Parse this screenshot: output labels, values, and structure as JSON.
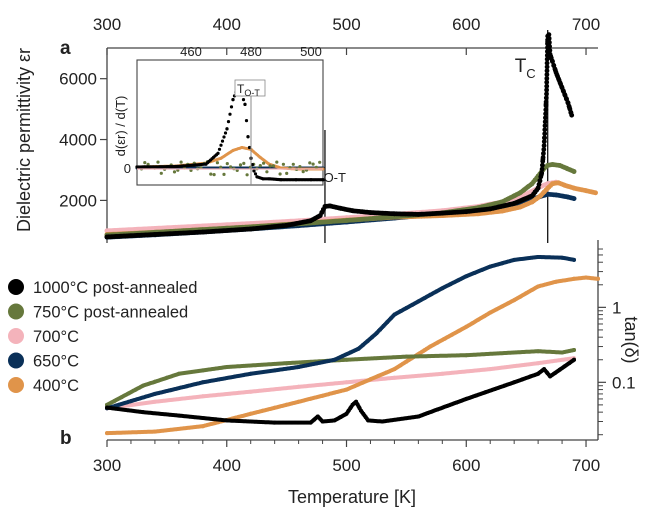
{
  "chart_data": [
    {
      "panel": "a",
      "type": "scatter",
      "title": "",
      "xlabel": "",
      "ylabel": "Dielectric permittivity εr",
      "xlim": [
        300,
        710
      ],
      "ylim": [
        600,
        7600
      ],
      "x_ticks": [
        "300",
        "400",
        "500",
        "600",
        "700"
      ],
      "y_ticks": [
        "2000",
        "4000",
        "6000"
      ],
      "x_tick_values": [
        300,
        400,
        500,
        600,
        700
      ],
      "y_tick_values": [
        2000,
        4000,
        6000
      ],
      "annotations": {
        "tc": {
          "text": "T",
          "sub": "C",
          "x": 668
        },
        "tot": {
          "text": "T",
          "sub": "O-T",
          "x": 482
        }
      },
      "series": [
        {
          "name": "1000°C post-annealed",
          "color": "#000000",
          "shape": "dots",
          "x": [
            300,
            340,
            380,
            420,
            450,
            470,
            478,
            482,
            486,
            495,
            505,
            520,
            540,
            560,
            580,
            600,
            620,
            640,
            655,
            660,
            663,
            665,
            667,
            668,
            669,
            670,
            675,
            680,
            685,
            688
          ],
          "y": [
            800,
            880,
            960,
            1060,
            1180,
            1330,
            1500,
            1800,
            1820,
            1740,
            1660,
            1600,
            1560,
            1540,
            1580,
            1630,
            1720,
            1900,
            2150,
            2400,
            2900,
            3800,
            5500,
            7400,
            7450,
            6800,
            6200,
            5700,
            5200,
            4800
          ]
        },
        {
          "name": "750°C post-annealed",
          "color": "#66783c",
          "shape": "dots",
          "x": [
            300,
            340,
            380,
            420,
            460,
            500,
            540,
            580,
            610,
            630,
            645,
            655,
            660,
            665,
            668,
            672,
            678,
            684,
            690
          ],
          "y": [
            860,
            950,
            1040,
            1130,
            1230,
            1340,
            1460,
            1590,
            1760,
            1950,
            2250,
            2550,
            2800,
            3050,
            3150,
            3180,
            3150,
            3050,
            2950
          ]
        },
        {
          "name": "700°C",
          "color": "#f4b3bb",
          "shape": "dots",
          "x": [
            300,
            340,
            380,
            420,
            460,
            500,
            540,
            580,
            610,
            630,
            645,
            655,
            662,
            668,
            675
          ],
          "y": [
            1000,
            1080,
            1160,
            1240,
            1330,
            1430,
            1540,
            1660,
            1800,
            1950,
            2120,
            2300,
            2450,
            2550,
            2600
          ]
        },
        {
          "name": "650°C",
          "color": "#0a3058",
          "shape": "dots",
          "x": [
            300,
            340,
            380,
            420,
            460,
            500,
            540,
            580,
            610,
            630,
            645,
            655,
            662,
            668,
            675,
            685,
            690
          ],
          "y": [
            790,
            870,
            960,
            1060,
            1170,
            1290,
            1420,
            1560,
            1690,
            1800,
            1910,
            2030,
            2130,
            2200,
            2180,
            2110,
            2060
          ]
        },
        {
          "name": "400°C",
          "color": "#e0944a",
          "shape": "dots",
          "x": [
            300,
            340,
            380,
            420,
            460,
            500,
            540,
            580,
            610,
            630,
            645,
            655,
            662,
            668,
            672,
            677,
            682,
            690,
            700,
            708
          ],
          "y": [
            880,
            950,
            1040,
            1130,
            1240,
            1350,
            1450,
            1500,
            1560,
            1650,
            1780,
            1950,
            2150,
            2400,
            2550,
            2580,
            2500,
            2400,
            2320,
            2250
          ]
        }
      ]
    },
    {
      "panel": "a-inset",
      "type": "scatter",
      "ylabel": "d(εr) / d(T)",
      "xlim": [
        442,
        504
      ],
      "x_ticks": [
        "460",
        "480",
        "500"
      ],
      "x_tick_values": [
        460,
        480,
        500
      ],
      "y_ticks": [
        "0"
      ],
      "annotation": {
        "text": "T",
        "sub": "O-T",
        "x": 480
      },
      "series": [
        {
          "name": "1000°C post-annealed",
          "color": "#000000",
          "x": [
            442,
            455,
            465,
            469,
            472,
            474,
            476,
            478,
            479,
            480,
            481,
            482,
            484,
            486,
            490,
            495,
            500,
            504
          ],
          "y": [
            0.1,
            0.15,
            0.4,
            1.5,
            4.0,
            7.0,
            8.5,
            6.5,
            3.2,
            1.0,
            -0.3,
            -0.9,
            -1.1,
            -1.1,
            -1.2,
            -1.2,
            -1.2,
            -1.2
          ]
        },
        {
          "name": "750°C post-annealed",
          "color": "#66783c",
          "noisy": true,
          "x": [
            442,
            504
          ],
          "y": [
            0,
            0
          ]
        },
        {
          "name": "650°C",
          "color": "#0a3058",
          "x": [
            442,
            504
          ],
          "y": [
            0,
            0
          ]
        },
        {
          "name": "400°C",
          "color": "#e0944a",
          "x": [
            442,
            455,
            465,
            470,
            474,
            477,
            480,
            483,
            486,
            490,
            495,
            504
          ],
          "y": [
            0.1,
            0.2,
            0.5,
            1.0,
            1.8,
            2.1,
            1.9,
            1.1,
            0.4,
            0.0,
            -0.1,
            -0.1
          ]
        }
      ]
    },
    {
      "panel": "b",
      "type": "scatter",
      "xlabel": "Temperature [K]",
      "ylabel": "tan(δ)",
      "yscale": "log",
      "xlim": [
        300,
        710
      ],
      "ylim": [
        0.017,
        7
      ],
      "x_ticks": [
        "300",
        "400",
        "500",
        "600",
        "700"
      ],
      "x_tick_values": [
        300,
        400,
        500,
        600,
        700
      ],
      "y_ticks": [
        "0.1",
        "1"
      ],
      "y_tick_values": [
        0.1,
        1
      ],
      "legend_position": "left",
      "series": [
        {
          "name": "1000°C post-annealed",
          "color": "#000000",
          "x": [
            300,
            330,
            360,
            400,
            440,
            470,
            476,
            480,
            490,
            500,
            505,
            508,
            512,
            518,
            530,
            560,
            600,
            640,
            660,
            665,
            670,
            690
          ],
          "y": [
            0.046,
            0.04,
            0.036,
            0.031,
            0.029,
            0.029,
            0.035,
            0.03,
            0.031,
            0.038,
            0.05,
            0.055,
            0.042,
            0.031,
            0.03,
            0.035,
            0.06,
            0.1,
            0.13,
            0.15,
            0.12,
            0.2
          ]
        },
        {
          "name": "750°C post-annealed",
          "color": "#66783c",
          "x": [
            300,
            330,
            360,
            400,
            450,
            500,
            550,
            600,
            640,
            660,
            680,
            690
          ],
          "y": [
            0.05,
            0.09,
            0.13,
            0.16,
            0.18,
            0.2,
            0.22,
            0.23,
            0.25,
            0.26,
            0.25,
            0.27
          ]
        },
        {
          "name": "700°C",
          "color": "#f4b3bb",
          "x": [
            300,
            340,
            380,
            420,
            460,
            500,
            540,
            580,
            620,
            660,
            690
          ],
          "y": [
            0.045,
            0.055,
            0.065,
            0.075,
            0.087,
            0.1,
            0.115,
            0.13,
            0.15,
            0.18,
            0.21
          ]
        },
        {
          "name": "650°C",
          "color": "#0a3058",
          "x": [
            300,
            340,
            380,
            420,
            460,
            490,
            510,
            525,
            540,
            560,
            580,
            600,
            620,
            640,
            660,
            680,
            690
          ],
          "y": [
            0.045,
            0.07,
            0.1,
            0.13,
            0.16,
            0.2,
            0.28,
            0.45,
            0.8,
            1.2,
            1.8,
            2.6,
            3.5,
            4.3,
            4.7,
            4.6,
            4.3
          ]
        },
        {
          "name": "400°C",
          "color": "#e0944a",
          "x": [
            300,
            340,
            380,
            420,
            460,
            500,
            540,
            570,
            600,
            620,
            640,
            660,
            675,
            690,
            700,
            710
          ],
          "y": [
            0.021,
            0.022,
            0.026,
            0.038,
            0.055,
            0.08,
            0.15,
            0.3,
            0.55,
            0.85,
            1.25,
            1.9,
            2.2,
            2.4,
            2.5,
            2.4
          ]
        }
      ]
    }
  ],
  "labels": {
    "panel_a": "a",
    "panel_b": "b"
  }
}
